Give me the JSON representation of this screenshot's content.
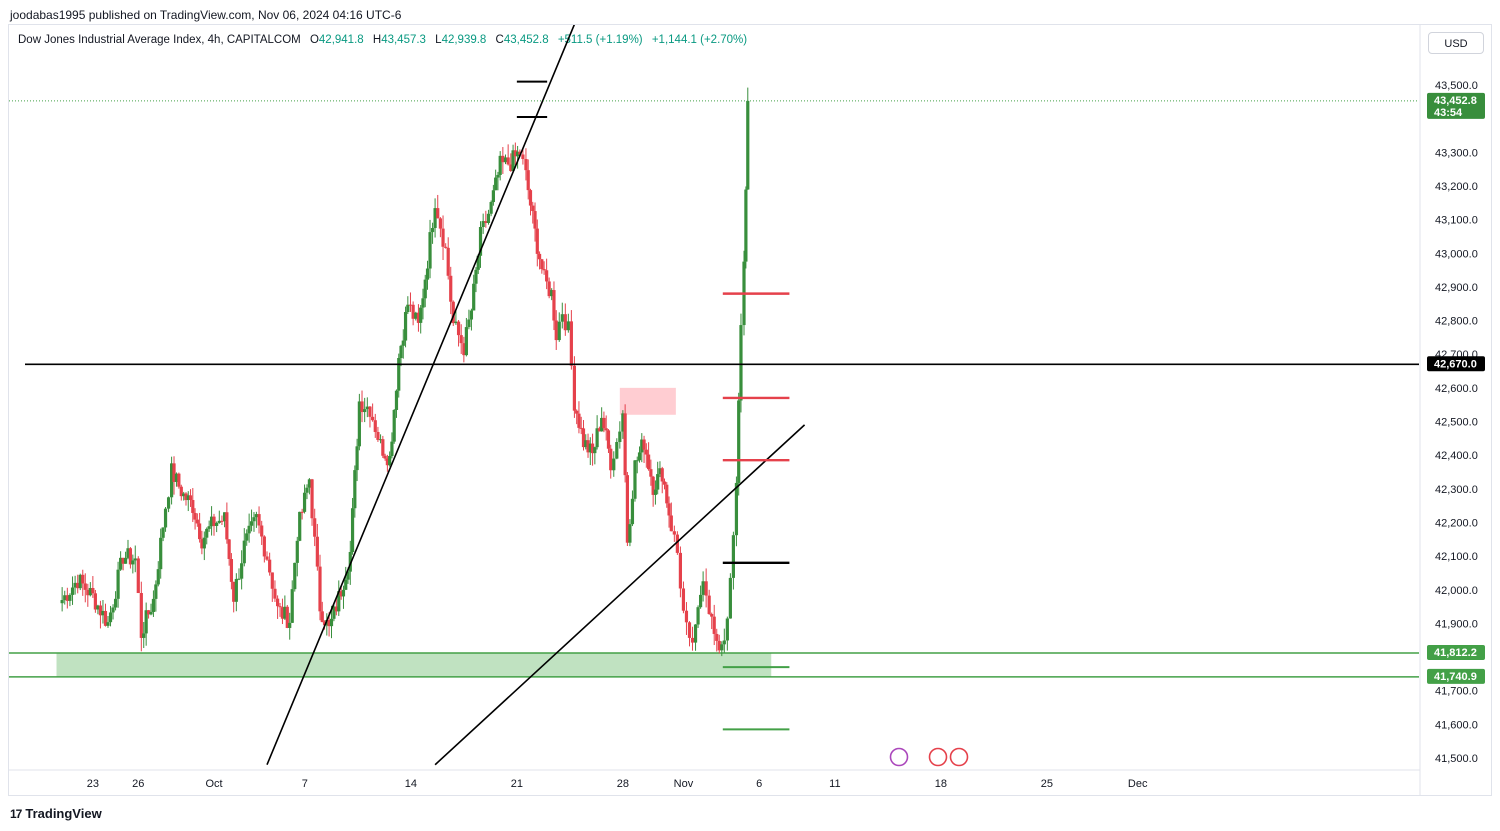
{
  "header": {
    "publisher_line": "joodabas1995 published on TradingView.com, Nov 06, 2024 04:16 UTC-6",
    "symbol": "Dow Jones Industrial Average Index, 4h, CAPITALCOM",
    "o_label": "O",
    "o_value": "42,941.8",
    "h_label": "H",
    "h_value": "43,457.3",
    "l_label": "L",
    "l_value": "42,939.8",
    "c_label": "C",
    "c_value": "43,452.8",
    "change": "+511.5 (+1.19%)",
    "change2": "+1,144.1 (+2.70%)",
    "currency": "USD"
  },
  "brand": {
    "name": "TradingView",
    "logo": "17"
  },
  "colors": {
    "up": "#388e3c",
    "down": "#e5414b",
    "accent": "#43a047",
    "line": "#000000"
  },
  "chart_data": {
    "type": "candlestick",
    "title": "Dow Jones Industrial Average Index, 4h, CAPITALCOM",
    "y_ticks": [
      "43,500.0",
      "43,300.0",
      "43,200.0",
      "43,100.0",
      "43,000.0",
      "42,900.0",
      "42,800.0",
      "42,700.0",
      "42,600.0",
      "42,500.0",
      "42,400.0",
      "42,300.0",
      "42,200.0",
      "42,100.0",
      "42,000.0",
      "41,900.0",
      "41,700.0",
      "41,600.0",
      "41,500.0"
    ],
    "y_tick_values": [
      43500,
      43300,
      43200,
      43100,
      43000,
      42900,
      42800,
      42700,
      42600,
      42500,
      42400,
      42300,
      42200,
      42100,
      42000,
      41900,
      41700,
      41600,
      41500
    ],
    "x_ticks": [
      "23",
      "26",
      "Oct",
      "7",
      "14",
      "21",
      "28",
      "Nov",
      "6",
      "11",
      "18",
      "25",
      "Dec"
    ],
    "x_tick_days": [
      -8,
      -5,
      0,
      6,
      13,
      20,
      27,
      31,
      36,
      41,
      48,
      55,
      61
    ],
    "ylim": [
      41480,
      43700
    ],
    "price_tags": [
      {
        "label": "43,452.8",
        "sub": "43:54",
        "value": 43452.8,
        "color": "#388e3c"
      },
      {
        "label": "42,670.0",
        "value": 42670,
        "color": "#000000"
      },
      {
        "label": "41,812.2",
        "value": 41812.2,
        "color": "#43a047"
      },
      {
        "label": "41,740.9",
        "value": 41740.9,
        "color": "#43a047"
      }
    ],
    "anchors": [
      [
        -10.2,
        41960
      ],
      [
        -9,
        42030
      ],
      [
        -8,
        41980
      ],
      [
        -7,
        41900
      ],
      [
        -6,
        42100
      ],
      [
        -5.2,
        42090
      ],
      [
        -4.8,
        41870
      ],
      [
        -4,
        41970
      ],
      [
        -3.2,
        42250
      ],
      [
        -2.8,
        42350
      ],
      [
        -2,
        42280
      ],
      [
        -1.4,
        42250
      ],
      [
        -0.8,
        42150
      ],
      [
        0,
        42200
      ],
      [
        0.7,
        42210
      ],
      [
        1.3,
        41980
      ],
      [
        2,
        42130
      ],
      [
        2.8,
        42210
      ],
      [
        3.5,
        42100
      ],
      [
        4.2,
        41940
      ],
      [
        5,
        41910
      ],
      [
        5.5,
        42170
      ],
      [
        6.3,
        42330
      ],
      [
        7,
        41950
      ],
      [
        7.6,
        41880
      ],
      [
        8.4,
        42000
      ],
      [
        9,
        42110
      ],
      [
        9.6,
        42560
      ],
      [
        10.3,
        42540
      ],
      [
        11,
        42430
      ],
      [
        11.6,
        42390
      ],
      [
        12.2,
        42690
      ],
      [
        12.8,
        42850
      ],
      [
        13.5,
        42780
      ],
      [
        14.1,
        42980
      ],
      [
        14.6,
        43160
      ],
      [
        15.3,
        43010
      ],
      [
        15.8,
        42790
      ],
      [
        16.5,
        42720
      ],
      [
        17,
        42830
      ],
      [
        17.6,
        43050
      ],
      [
        18.3,
        43140
      ],
      [
        18.9,
        43260
      ],
      [
        19.6,
        43270
      ],
      [
        20.2,
        43300
      ],
      [
        20.6,
        43230
      ],
      [
        21.2,
        43060
      ],
      [
        21.8,
        42920
      ],
      [
        22.3,
        42880
      ],
      [
        22.6,
        42760
      ],
      [
        23,
        42830
      ],
      [
        23.4,
        42770
      ],
      [
        23.8,
        42560
      ],
      [
        24.4,
        42440
      ],
      [
        25,
        42400
      ],
      [
        25.6,
        42520
      ],
      [
        26.2,
        42380
      ],
      [
        26.6,
        42440
      ],
      [
        27,
        42530
      ],
      [
        27.3,
        42150
      ],
      [
        27.8,
        42370
      ],
      [
        28.4,
        42440
      ],
      [
        29,
        42310
      ],
      [
        29.6,
        42350
      ],
      [
        30.2,
        42190
      ],
      [
        30.6,
        42110
      ],
      [
        31,
        41930
      ],
      [
        31.4,
        41830
      ],
      [
        31.8,
        41870
      ],
      [
        32.3,
        42050
      ],
      [
        32.7,
        41950
      ],
      [
        33.2,
        41820
      ],
      [
        33.7,
        41860
      ],
      [
        34.1,
        42010
      ],
      [
        34.5,
        42300
      ],
      [
        34.8,
        42800
      ],
      [
        35,
        42970
      ],
      [
        35.25,
        43452.8
      ]
    ],
    "levels": [
      {
        "y": 42670,
        "type": "horizontal_line"
      },
      {
        "y": 43510,
        "from": 20.0,
        "to": 22.0
      },
      {
        "y": 43405,
        "from": 20.0,
        "to": 22.0
      },
      {
        "y": 42880,
        "from": 33.6,
        "to": 38.0
      },
      {
        "y": 42570,
        "from": 33.6,
        "to": 38.0
      },
      {
        "y": 42385,
        "from": 33.6,
        "to": 38.0
      },
      {
        "y": 42080,
        "from": 33.6,
        "to": 38.0
      },
      {
        "y": 41770,
        "from": 33.6,
        "to": 38.0
      },
      {
        "y": 41585,
        "from": 33.6,
        "to": 38.0
      }
    ],
    "zones": [
      {
        "from": -10.4,
        "to": 36.8,
        "y_top": 41812.2,
        "y_bottom": 41740.9
      },
      {
        "from": 26.8,
        "to": 30.5,
        "y_top": 42600,
        "y_bottom": 42520
      }
    ],
    "trendlines": [
      {
        "x1": 3.5,
        "y1": 41480,
        "x2": 23.8,
        "y2": 43680
      },
      {
        "x1": 14.6,
        "y1": 41480,
        "x2": 39.0,
        "y2": 42490
      }
    ]
  }
}
